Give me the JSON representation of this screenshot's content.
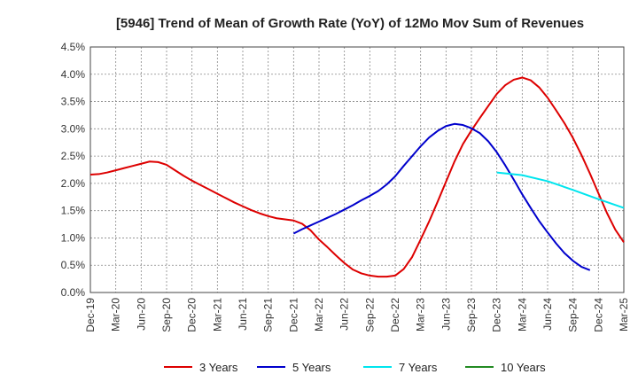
{
  "chart_data": {
    "type": "line",
    "title": "[5946]  Trend of Mean of Growth Rate (YoY) of 12Mo Mov Sum of Revenues",
    "xlabel": "",
    "ylabel": "",
    "ylim": [
      0,
      4.5
    ],
    "grid": true,
    "legend_position": "bottom",
    "x_ticks": [
      "Dec-19",
      "Mar-20",
      "Jun-20",
      "Sep-20",
      "Dec-20",
      "Mar-21",
      "Jun-21",
      "Sep-21",
      "Dec-21",
      "Mar-22",
      "Jun-22",
      "Sep-22",
      "Dec-22",
      "Mar-23",
      "Jun-23",
      "Sep-23",
      "Dec-23",
      "Mar-24",
      "Jun-24",
      "Sep-24",
      "Dec-24",
      "Mar-25"
    ],
    "y_ticks": [
      "0.0%",
      "0.5%",
      "1.0%",
      "1.5%",
      "2.0%",
      "2.5%",
      "3.0%",
      "3.5%",
      "4.0%",
      "4.5%"
    ],
    "x_range_months": [
      0,
      63
    ],
    "series": [
      {
        "name": "3 Years",
        "color": "#dd0000",
        "points": [
          [
            0,
            2.16
          ],
          [
            1,
            2.17
          ],
          [
            2,
            2.2
          ],
          [
            3,
            2.24
          ],
          [
            4,
            2.28
          ],
          [
            5,
            2.32
          ],
          [
            6,
            2.36
          ],
          [
            7,
            2.4
          ],
          [
            8,
            2.39
          ],
          [
            9,
            2.34
          ],
          [
            10,
            2.24
          ],
          [
            11,
            2.14
          ],
          [
            12,
            2.05
          ],
          [
            13,
            1.97
          ],
          [
            14,
            1.89
          ],
          [
            15,
            1.81
          ],
          [
            16,
            1.73
          ],
          [
            17,
            1.65
          ],
          [
            18,
            1.58
          ],
          [
            19,
            1.51
          ],
          [
            20,
            1.45
          ],
          [
            21,
            1.4
          ],
          [
            22,
            1.36
          ],
          [
            23,
            1.34
          ],
          [
            24,
            1.32
          ],
          [
            25,
            1.26
          ],
          [
            26,
            1.14
          ],
          [
            27,
            0.97
          ],
          [
            28,
            0.83
          ],
          [
            29,
            0.68
          ],
          [
            30,
            0.54
          ],
          [
            31,
            0.42
          ],
          [
            32,
            0.35
          ],
          [
            33,
            0.31
          ],
          [
            34,
            0.29
          ],
          [
            35,
            0.29
          ],
          [
            36,
            0.31
          ],
          [
            37,
            0.43
          ],
          [
            38,
            0.65
          ],
          [
            39,
            0.97
          ],
          [
            40,
            1.3
          ],
          [
            41,
            1.66
          ],
          [
            42,
            2.03
          ],
          [
            43,
            2.4
          ],
          [
            44,
            2.72
          ],
          [
            45,
            2.97
          ],
          [
            46,
            3.2
          ],
          [
            47,
            3.42
          ],
          [
            48,
            3.64
          ],
          [
            49,
            3.8
          ],
          [
            50,
            3.9
          ],
          [
            51,
            3.94
          ],
          [
            52,
            3.89
          ],
          [
            53,
            3.76
          ],
          [
            54,
            3.57
          ],
          [
            55,
            3.34
          ],
          [
            56,
            3.1
          ],
          [
            57,
            2.83
          ],
          [
            58,
            2.52
          ],
          [
            59,
            2.18
          ],
          [
            60,
            1.82
          ],
          [
            61,
            1.46
          ],
          [
            62,
            1.15
          ],
          [
            63,
            0.92
          ]
        ]
      },
      {
        "name": "5 Years",
        "color": "#0000cc",
        "points": [
          [
            24,
            1.08
          ],
          [
            25,
            1.16
          ],
          [
            26,
            1.23
          ],
          [
            27,
            1.3
          ],
          [
            28,
            1.37
          ],
          [
            29,
            1.44
          ],
          [
            30,
            1.52
          ],
          [
            31,
            1.6
          ],
          [
            32,
            1.69
          ],
          [
            33,
            1.77
          ],
          [
            34,
            1.86
          ],
          [
            35,
            1.98
          ],
          [
            36,
            2.13
          ],
          [
            37,
            2.32
          ],
          [
            38,
            2.5
          ],
          [
            39,
            2.68
          ],
          [
            40,
            2.84
          ],
          [
            41,
            2.96
          ],
          [
            42,
            3.05
          ],
          [
            43,
            3.09
          ],
          [
            44,
            3.07
          ],
          [
            45,
            3.01
          ],
          [
            46,
            2.92
          ],
          [
            47,
            2.77
          ],
          [
            48,
            2.57
          ],
          [
            49,
            2.33
          ],
          [
            50,
            2.07
          ],
          [
            51,
            1.8
          ],
          [
            52,
            1.55
          ],
          [
            53,
            1.31
          ],
          [
            54,
            1.1
          ],
          [
            55,
            0.9
          ],
          [
            56,
            0.72
          ],
          [
            57,
            0.58
          ],
          [
            58,
            0.47
          ],
          [
            59,
            0.41
          ]
        ]
      },
      {
        "name": "7 Years",
        "color": "#00e5ee",
        "points": [
          [
            48,
            2.2
          ],
          [
            51,
            2.15
          ],
          [
            54,
            2.04
          ],
          [
            57,
            1.88
          ],
          [
            60,
            1.71
          ],
          [
            63,
            1.55
          ]
        ]
      },
      {
        "name": "10 Years",
        "color": "#228b22",
        "points": []
      }
    ]
  }
}
